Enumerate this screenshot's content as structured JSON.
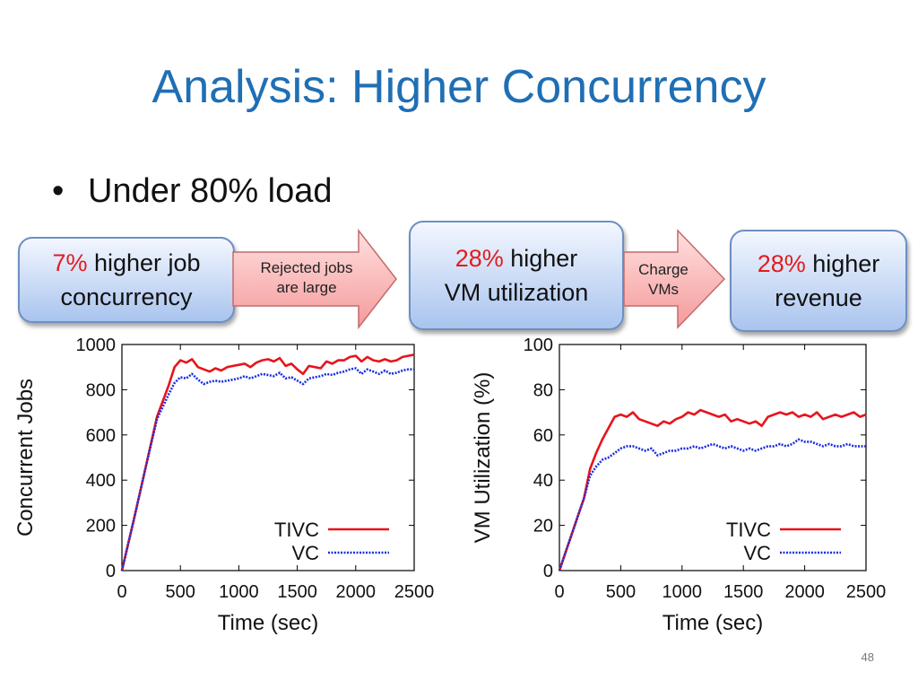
{
  "slide": {
    "title": "Analysis: Higher Concurrency",
    "bullet": "Under 80% load",
    "page_number": "48"
  },
  "flow": {
    "box1": {
      "highlight": "7%",
      "line1_rest": " higher job",
      "line2": "concurrency"
    },
    "arrow1": {
      "line1": "Rejected jobs",
      "line2": "are large"
    },
    "box2": {
      "highlight": "28%",
      "line1_rest": " higher",
      "line2": "VM utilization"
    },
    "arrow2": {
      "line1": "Charge",
      "line2": "VMs"
    },
    "box3": {
      "highlight": "28%",
      "line1_rest": " higher",
      "line2": "revenue"
    }
  },
  "colors": {
    "tivc": "#e8141c",
    "vc": "#1a2ee0",
    "title": "#1f6fb4"
  },
  "chart_data": [
    {
      "type": "line",
      "xlabel": "Time (sec)",
      "ylabel": "Concurrent Jobs",
      "xlim": [
        0,
        2500
      ],
      "ylim": [
        0,
        1000
      ],
      "xticks": [
        0,
        500,
        1000,
        1500,
        2000,
        2500
      ],
      "yticks": [
        0,
        200,
        400,
        600,
        800,
        1000
      ],
      "legend_position": "bottom-right",
      "series": [
        {
          "name": "TIVC",
          "style": "solid",
          "x": [
            0,
            100,
            200,
            300,
            400,
            450,
            500,
            550,
            600,
            650,
            700,
            750,
            800,
            850,
            900,
            950,
            1000,
            1050,
            1100,
            1150,
            1200,
            1250,
            1300,
            1350,
            1400,
            1450,
            1500,
            1550,
            1600,
            1650,
            1700,
            1750,
            1800,
            1850,
            1900,
            1950,
            2000,
            2050,
            2100,
            2150,
            2200,
            2250,
            2300,
            2350,
            2400,
            2450,
            2500
          ],
          "y": [
            0,
            220,
            450,
            680,
            820,
            900,
            930,
            920,
            935,
            900,
            890,
            880,
            895,
            885,
            900,
            905,
            910,
            915,
            900,
            920,
            930,
            935,
            925,
            940,
            905,
            915,
            890,
            870,
            905,
            900,
            895,
            925,
            915,
            930,
            930,
            945,
            950,
            925,
            945,
            930,
            925,
            935,
            925,
            930,
            945,
            950,
            955
          ]
        },
        {
          "name": "VC",
          "style": "dotted",
          "x": [
            0,
            100,
            200,
            300,
            400,
            450,
            500,
            550,
            600,
            650,
            700,
            750,
            800,
            850,
            900,
            950,
            1000,
            1050,
            1100,
            1150,
            1200,
            1250,
            1300,
            1350,
            1400,
            1450,
            1500,
            1550,
            1600,
            1650,
            1700,
            1750,
            1800,
            1850,
            1900,
            1950,
            2000,
            2050,
            2100,
            2150,
            2200,
            2250,
            2300,
            2350,
            2400,
            2450,
            2500
          ],
          "y": [
            0,
            220,
            450,
            670,
            780,
            830,
            855,
            850,
            870,
            845,
            825,
            835,
            840,
            835,
            840,
            845,
            850,
            860,
            850,
            860,
            870,
            865,
            860,
            875,
            850,
            855,
            840,
            825,
            850,
            855,
            860,
            870,
            865,
            875,
            880,
            890,
            895,
            870,
            890,
            880,
            870,
            885,
            870,
            875,
            885,
            890,
            890
          ]
        }
      ]
    },
    {
      "type": "line",
      "xlabel": "Time (sec)",
      "ylabel": "VM Utilization (%)",
      "xlim": [
        0,
        2500
      ],
      "ylim": [
        0,
        100
      ],
      "xticks": [
        0,
        500,
        1000,
        1500,
        2000,
        2500
      ],
      "yticks": [
        0,
        20,
        40,
        60,
        80,
        100
      ],
      "legend_position": "bottom-right",
      "series": [
        {
          "name": "TIVC",
          "style": "solid",
          "x": [
            0,
            50,
            100,
            150,
            200,
            250,
            300,
            350,
            400,
            450,
            500,
            550,
            600,
            650,
            700,
            750,
            800,
            850,
            900,
            950,
            1000,
            1050,
            1100,
            1150,
            1200,
            1250,
            1300,
            1350,
            1400,
            1450,
            1500,
            1550,
            1600,
            1650,
            1700,
            1750,
            1800,
            1850,
            1900,
            1950,
            2000,
            2050,
            2100,
            2150,
            2200,
            2250,
            2300,
            2350,
            2400,
            2450,
            2500
          ],
          "y": [
            0,
            8,
            16,
            24,
            32,
            45,
            52,
            58,
            63,
            68,
            69,
            68,
            70,
            67,
            66,
            65,
            64,
            66,
            65,
            67,
            68,
            70,
            69,
            71,
            70,
            69,
            68,
            69,
            66,
            67,
            66,
            65,
            66,
            64,
            68,
            69,
            70,
            69,
            70,
            68,
            69,
            68,
            70,
            67,
            68,
            69,
            68,
            69,
            70,
            68,
            69
          ]
        },
        {
          "name": "VC",
          "style": "dotted",
          "x": [
            0,
            50,
            100,
            150,
            200,
            250,
            300,
            350,
            400,
            450,
            500,
            550,
            600,
            650,
            700,
            750,
            800,
            850,
            900,
            950,
            1000,
            1050,
            1100,
            1150,
            1200,
            1250,
            1300,
            1350,
            1400,
            1450,
            1500,
            1550,
            1600,
            1650,
            1700,
            1750,
            1800,
            1850,
            1900,
            1950,
            2000,
            2050,
            2100,
            2150,
            2200,
            2250,
            2300,
            2350,
            2400,
            2450,
            2500
          ],
          "y": [
            0,
            8,
            16,
            24,
            32,
            42,
            46,
            49,
            50,
            52,
            54,
            55,
            55,
            54,
            53,
            54,
            51,
            52,
            53,
            53,
            54,
            54,
            55,
            54,
            55,
            56,
            55,
            54,
            55,
            54,
            53,
            54,
            53,
            54,
            55,
            55,
            56,
            55,
            56,
            58,
            57,
            57,
            56,
            55,
            56,
            55,
            55,
            56,
            55,
            55,
            55
          ]
        }
      ]
    }
  ]
}
